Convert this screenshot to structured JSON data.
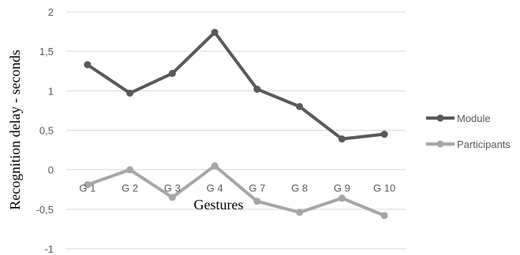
{
  "chart_data": {
    "type": "line",
    "xlabel": "Gestures",
    "ylabel": "Recognition delay - seconds",
    "ylim": [
      -1,
      2
    ],
    "yticks": [
      "-1",
      "-0,5",
      "0",
      "0,5",
      "1",
      "1,5",
      "2"
    ],
    "ytick_values": [
      -1,
      -0.5,
      0,
      0.5,
      1,
      1.5,
      2
    ],
    "categories": [
      "G 1",
      "G 2",
      "G 3",
      "G 4",
      "G 7",
      "G 8",
      "G 9",
      "G 10"
    ],
    "grid": true,
    "legend_position": "right",
    "series": [
      {
        "name": "Module",
        "color": "#595959",
        "values": [
          1.33,
          0.97,
          1.22,
          1.74,
          1.02,
          0.8,
          0.39,
          0.45
        ]
      },
      {
        "name": "Participants",
        "color": "#a6a6a6",
        "values": [
          -0.19,
          0.0,
          -0.35,
          0.05,
          -0.4,
          -0.54,
          -0.36,
          -0.58
        ]
      }
    ]
  }
}
